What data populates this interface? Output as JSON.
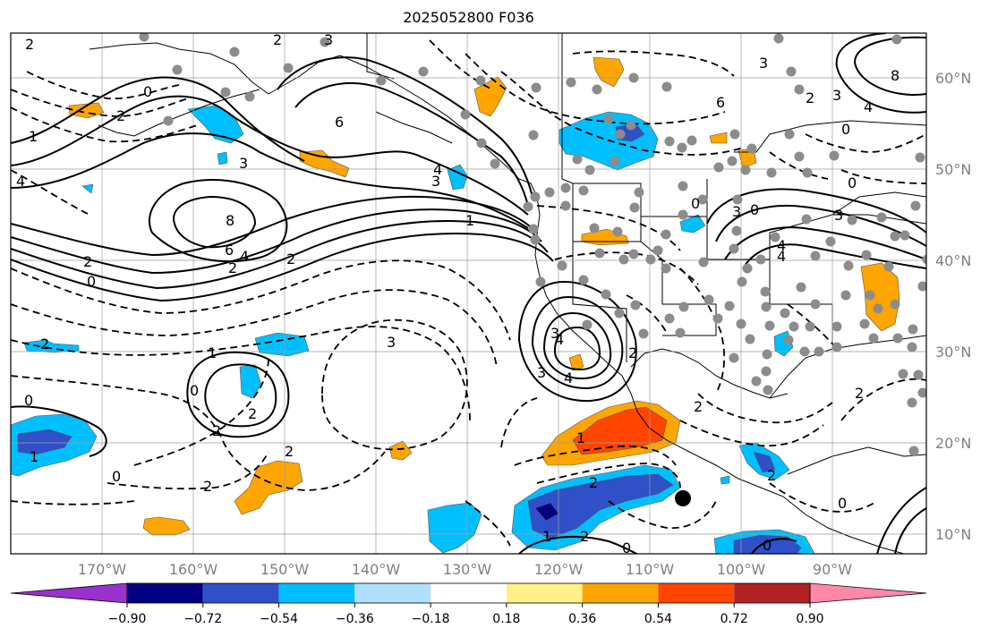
{
  "title": "2025052800 F036",
  "lat_labels": [
    {
      "text": "60°N"
    },
    {
      "text": "50°N"
    },
    {
      "text": "40°N"
    },
    {
      "text": "30°N"
    },
    {
      "text": "20°N"
    },
    {
      "text": "10°N"
    }
  ],
  "lon_labels": [
    {
      "text": "170°W"
    },
    {
      "text": "160°W"
    },
    {
      "text": "150°W"
    },
    {
      "text": "140°W"
    },
    {
      "text": "130°W"
    },
    {
      "text": "120°W"
    },
    {
      "text": "110°W"
    },
    {
      "text": "100°W"
    },
    {
      "text": "90°W"
    }
  ],
  "colorbar": {
    "colors": [
      "#9932cc",
      "#000080",
      "#3050c8",
      "#00bfff",
      "#b0e0ff",
      "#ffffff",
      "#fff08a",
      "#ffa500",
      "#ff4500",
      "#b22222",
      "#ff88aa"
    ],
    "labels": [
      "−0.90",
      "−0.72",
      "−0.54",
      "−0.36",
      "−0.18",
      "0.18",
      "0.36",
      "0.54",
      "0.72",
      "0.90"
    ]
  },
  "contour_labels": [
    {
      "text": "2"
    },
    {
      "text": "0"
    },
    {
      "text": "2"
    },
    {
      "text": "1"
    },
    {
      "text": "4"
    },
    {
      "text": "3"
    },
    {
      "text": "8"
    },
    {
      "text": "6"
    },
    {
      "text": "4"
    },
    {
      "text": "2"
    },
    {
      "text": "0"
    },
    {
      "text": "2"
    },
    {
      "text": "6"
    },
    {
      "text": "3"
    },
    {
      "text": "4"
    },
    {
      "text": "3"
    },
    {
      "text": "4"
    },
    {
      "text": "2"
    },
    {
      "text": "1"
    },
    {
      "text": "2"
    },
    {
      "text": "0"
    },
    {
      "text": "2"
    },
    {
      "text": "3"
    },
    {
      "text": "0"
    },
    {
      "text": "1"
    },
    {
      "text": "2"
    },
    {
      "text": "2"
    },
    {
      "text": "3"
    },
    {
      "text": "2"
    },
    {
      "text": "0"
    },
    {
      "text": "2"
    },
    {
      "text": "2"
    },
    {
      "text": "3"
    },
    {
      "text": "4"
    },
    {
      "text": "1"
    },
    {
      "text": "2"
    },
    {
      "text": "1"
    },
    {
      "text": "0"
    },
    {
      "text": "1"
    },
    {
      "text": "0"
    },
    {
      "text": "6"
    },
    {
      "text": "0"
    },
    {
      "text": "2"
    },
    {
      "text": "3"
    },
    {
      "text": "4"
    },
    {
      "text": "8"
    },
    {
      "text": "3"
    },
    {
      "text": "0"
    },
    {
      "text": "4"
    },
    {
      "text": "0"
    },
    {
      "text": "3"
    },
    {
      "text": "4"
    },
    {
      "text": "2"
    },
    {
      "text": "0"
    },
    {
      "text": "2"
    },
    {
      "text": "2"
    },
    {
      "text": "0"
    },
    {
      "text": "3"
    },
    {
      "text": "2"
    }
  ]
}
